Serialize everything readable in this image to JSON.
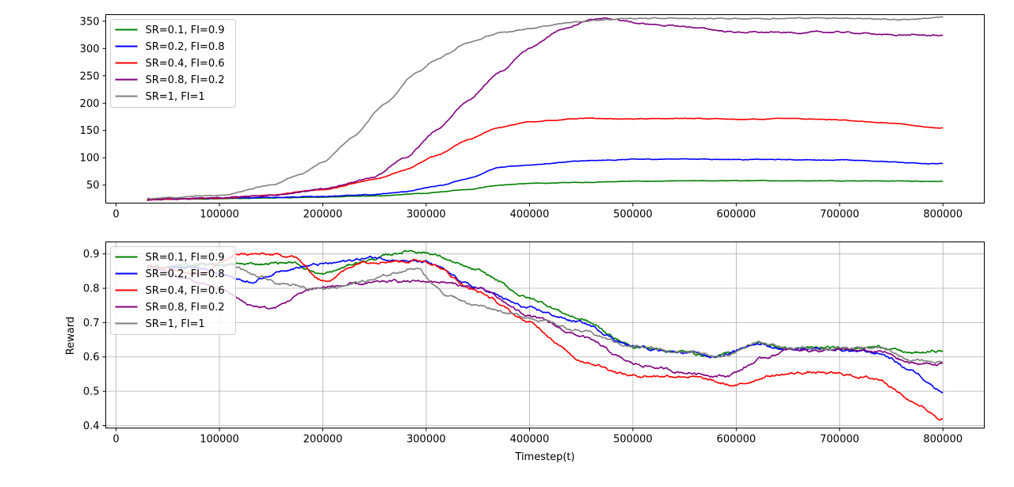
{
  "chart_data": [
    {
      "type": "line",
      "title": "",
      "xlabel": "",
      "ylabel": "",
      "xlim": [
        -10000,
        840000
      ],
      "ylim": [
        17,
        362
      ],
      "xticks": [
        0,
        100000,
        200000,
        300000,
        400000,
        500000,
        600000,
        700000,
        800000
      ],
      "yticks": [
        50,
        100,
        150,
        200,
        250,
        300,
        350
      ],
      "grid": false,
      "legend_position": "upper left",
      "series": [
        {
          "name": "SR=0.1, FI=0.9",
          "color": "#008000",
          "noise": 0.25,
          "x": [
            30000,
            100000,
            200000,
            250000,
            300000,
            340000,
            370000,
            400000,
            450000,
            500000,
            600000,
            700000,
            800000
          ],
          "values": [
            24,
            25,
            28,
            30,
            35,
            42,
            50,
            53,
            55,
            57,
            58,
            58,
            57
          ]
        },
        {
          "name": "SR=0.2, FI=0.8",
          "color": "#0000ff",
          "noise": 0.35,
          "x": [
            30000,
            100000,
            200000,
            250000,
            280000,
            310000,
            340000,
            370000,
            400000,
            450000,
            500000,
            550000,
            600000,
            700000,
            800000
          ],
          "values": [
            23,
            26,
            29,
            33,
            38,
            48,
            62,
            82,
            87,
            94,
            97,
            98,
            97,
            96,
            89
          ]
        },
        {
          "name": "SR=0.4, FI=0.6",
          "color": "#ff0000",
          "noise": 0.4,
          "x": [
            30000,
            100000,
            150000,
            200000,
            250000,
            280000,
            310000,
            340000,
            370000,
            400000,
            450000,
            500000,
            550000,
            600000,
            650000,
            700000,
            750000,
            800000
          ],
          "values": [
            23,
            26,
            32,
            42,
            60,
            78,
            104,
            133,
            155,
            166,
            172,
            171,
            172,
            170,
            172,
            169,
            163,
            154
          ]
        },
        {
          "name": "SR=0.8, FI=0.2",
          "color": "#800080",
          "noise": 0.8,
          "x": [
            30000,
            100000,
            150000,
            200000,
            250000,
            280000,
            310000,
            340000,
            370000,
            400000,
            430000,
            460000,
            480000,
            510000,
            550000,
            600000,
            650000,
            700000,
            750000,
            800000
          ],
          "values": [
            23,
            26,
            32,
            42,
            65,
            100,
            150,
            205,
            255,
            300,
            335,
            354,
            354,
            345,
            340,
            330,
            329,
            330,
            325,
            324
          ]
        },
        {
          "name": "SR=1, FI=1",
          "color": "#808080",
          "noise": 0.6,
          "x": [
            30000,
            100000,
            150000,
            180000,
            200000,
            230000,
            260000,
            290000,
            310000,
            340000,
            370000,
            400000,
            450000,
            480000,
            500000,
            600000,
            700000,
            760000,
            800000
          ],
          "values": [
            25,
            31,
            50,
            71,
            92,
            140,
            200,
            255,
            280,
            310,
            328,
            337,
            350,
            354,
            355,
            355,
            356,
            353,
            357
          ]
        }
      ]
    },
    {
      "type": "line",
      "title": "",
      "xlabel": "Timestep(t)",
      "ylabel": "Reward",
      "xlim": [
        -10000,
        840000
      ],
      "ylim": [
        0.393,
        0.935
      ],
      "xticks": [
        0,
        100000,
        200000,
        300000,
        400000,
        500000,
        600000,
        700000,
        800000
      ],
      "yticks": [
        0.4,
        0.5,
        0.6,
        0.7,
        0.8,
        0.9
      ],
      "ytick_labels": [
        "0.4",
        "0.5",
        "0.6",
        "0.7",
        "0.8",
        "0.9"
      ],
      "grid": true,
      "legend_position": "upper left",
      "series": [
        {
          "name": "SR=0.1, FI=0.9",
          "color": "#008000",
          "noise": 0.0025,
          "x": [
            30000,
            120000,
            170000,
            200000,
            240000,
            285000,
            300000,
            350000,
            400000,
            450000,
            500000,
            550000,
            580000,
            620000,
            650000,
            700000,
            740000,
            770000,
            800000
          ],
          "values": [
            0.86,
            0.87,
            0.875,
            0.84,
            0.88,
            0.91,
            0.905,
            0.85,
            0.77,
            0.71,
            0.63,
            0.615,
            0.6,
            0.64,
            0.625,
            0.625,
            0.63,
            0.61,
            0.618
          ]
        },
        {
          "name": "SR=0.2, FI=0.8",
          "color": "#0000ff",
          "noise": 0.0025,
          "x": [
            30000,
            80000,
            130000,
            170000,
            200000,
            250000,
            300000,
            350000,
            400000,
            450000,
            500000,
            550000,
            580000,
            620000,
            650000,
            700000,
            740000,
            770000,
            800000
          ],
          "values": [
            0.86,
            0.86,
            0.82,
            0.86,
            0.87,
            0.89,
            0.875,
            0.8,
            0.74,
            0.7,
            0.63,
            0.615,
            0.6,
            0.64,
            0.62,
            0.62,
            0.61,
            0.56,
            0.5
          ]
        },
        {
          "name": "SR=0.4, FI=0.6",
          "color": "#ff0000",
          "noise": 0.0025,
          "x": [
            30000,
            80000,
            120000,
            170000,
            200000,
            240000,
            300000,
            350000,
            400000,
            450000,
            500000,
            550000,
            600000,
            630000,
            670000,
            700000,
            740000,
            770000,
            800000
          ],
          "values": [
            0.865,
            0.84,
            0.9,
            0.895,
            0.82,
            0.88,
            0.88,
            0.79,
            0.7,
            0.59,
            0.545,
            0.545,
            0.515,
            0.545,
            0.555,
            0.55,
            0.535,
            0.47,
            0.42
          ]
        },
        {
          "name": "SR=0.8, FI=0.2",
          "color": "#800080",
          "noise": 0.0025,
          "x": [
            30000,
            100000,
            130000,
            150000,
            190000,
            230000,
            270000,
            310000,
            350000,
            400000,
            450000,
            500000,
            550000,
            590000,
            630000,
            650000,
            700000,
            740000,
            770000,
            800000
          ],
          "values": [
            0.86,
            0.8,
            0.75,
            0.74,
            0.8,
            0.81,
            0.82,
            0.82,
            0.8,
            0.72,
            0.66,
            0.58,
            0.555,
            0.545,
            0.6,
            0.62,
            0.62,
            0.615,
            0.58,
            0.58
          ]
        },
        {
          "name": "SR=1, FI=1",
          "color": "#808080",
          "noise": 0.0025,
          "x": [
            30000,
            80000,
            110000,
            140000,
            160000,
            200000,
            240000,
            290000,
            320000,
            350000,
            400000,
            450000,
            500000,
            550000,
            590000,
            620000,
            650000,
            700000,
            740000,
            770000,
            800000
          ],
          "values": [
            0.86,
            0.87,
            0.87,
            0.83,
            0.81,
            0.8,
            0.82,
            0.86,
            0.78,
            0.75,
            0.715,
            0.675,
            0.63,
            0.615,
            0.6,
            0.645,
            0.625,
            0.625,
            0.625,
            0.59,
            0.585
          ]
        }
      ]
    }
  ]
}
